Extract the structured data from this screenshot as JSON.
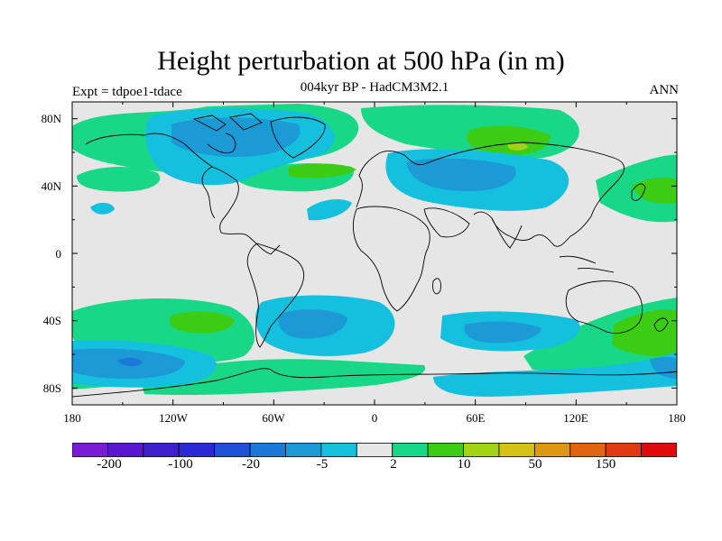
{
  "title": "Height perturbation at 500 hPa (in m)",
  "subtitle": "004kyr BP - HadCM3M2.1",
  "left_label": "Expt = tdpoe1-tdace",
  "right_label": "ANN",
  "map": {
    "projection": "cylindrical-equidistant",
    "lon_range": [
      -180,
      180
    ],
    "lat_range": [
      -90,
      90
    ],
    "lat_ticks": [
      "80N",
      "40N",
      "0",
      "40S",
      "80S"
    ],
    "lon_ticks": [
      "180",
      "120W",
      "60W",
      "0",
      "60E",
      "120E",
      "180"
    ],
    "background_color": "#e6e6e6",
    "coastline_color": "#000000"
  },
  "colorbar": {
    "colors": [
      "#7a1bd8",
      "#5a17d0",
      "#3d1fcc",
      "#2a2ad4",
      "#1f50d8",
      "#1b78d8",
      "#1b9ad6",
      "#15c0de",
      "#e6e6e6",
      "#18d888",
      "#3ccc14",
      "#a0d414",
      "#d4c214",
      "#dc9812",
      "#e06412",
      "#e03a14",
      "#e00a0a"
    ],
    "labels": [
      "-200",
      "-100",
      "-20",
      "-5",
      "2",
      "10",
      "50",
      "150"
    ]
  },
  "legend_colors": {
    "neg_strong": "#1b78d8",
    "neg": "#1b9ad6",
    "neg_weak": "#15c0de",
    "pos_weak": "#18d888",
    "pos": "#3ccc14",
    "pos_strong": "#a0d414",
    "neutral": "#e6e6e6"
  }
}
